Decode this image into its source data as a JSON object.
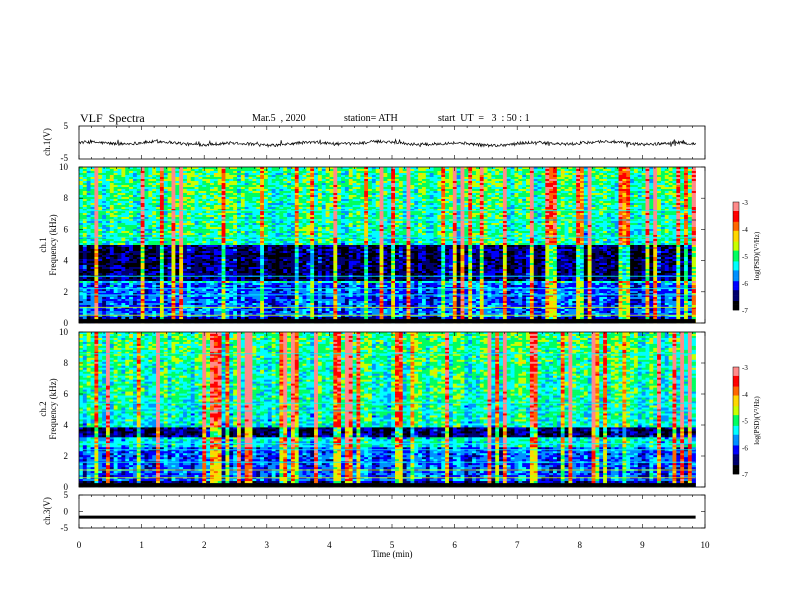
{
  "header": {
    "title": "VLF  Spectra",
    "date": "Mar.5  , 2020",
    "station": "station= ATH",
    "start_ut": "start  UT  =   3  : 50 : 1"
  },
  "chart_data": [
    {
      "type": "line",
      "panel": "ch1-waveform",
      "ylabel": "ch.1(V)",
      "ylim": [
        -5,
        5
      ],
      "yticks": [
        "5",
        "-5"
      ],
      "x_end_min": 9.85,
      "description_values": {
        "baseline": -0.3,
        "amplitude_range": [
          -2.3,
          0.9
        ]
      }
    },
    {
      "type": "heatmap",
      "panel": "ch1-spectrogram",
      "ylabel": "ch.1\nFrequency  (kHz)",
      "ylabel_lines": [
        "ch.1",
        "Frequency  (kHz)"
      ],
      "ylim": [
        0,
        10
      ],
      "yticks": [
        "0",
        "2",
        "4",
        "6",
        "8",
        "10"
      ],
      "x_end_min": 9.85,
      "colorbar": {
        "label": "log(PSD)(V²/Hz)",
        "range": [
          -7,
          -3
        ],
        "ticks": [
          "-3",
          "-4",
          "-5",
          "-6",
          "-7"
        ]
      },
      "bands_khz": {
        "dark_low_power": [
          2.7,
          5.0
        ],
        "bright_lines": [
          0.5,
          1.0,
          1.8,
          2.2,
          3.0,
          5.5,
          6.6,
          7.2
        ]
      }
    },
    {
      "type": "heatmap",
      "panel": "ch2-spectrogram",
      "ylabel_lines": [
        "ch.2",
        "Frequency  (kHz)"
      ],
      "ylim": [
        0,
        10
      ],
      "yticks": [
        "0",
        "2",
        "4",
        "6",
        "8",
        "10"
      ],
      "x_end_min": 9.85,
      "colorbar": {
        "label": "log(PSD)(V²/Hz)",
        "range": [
          -7,
          -3
        ],
        "ticks": [
          "-3",
          "-4",
          "-5",
          "-6",
          "-7"
        ]
      },
      "bands_khz": {
        "dark_low_power": [
          3.2,
          3.8
        ],
        "bright_lines": [
          0.6,
          1.1,
          1.6,
          2.4,
          2.8,
          4.9,
          5.4,
          8.6
        ]
      }
    },
    {
      "type": "line",
      "panel": "ch3-waveform",
      "ylabel": "ch.3(V)",
      "ylim": [
        -5,
        5
      ],
      "yticks": [
        "5",
        "0",
        "-5"
      ],
      "x_end_min": 9.85,
      "description_values": {
        "constant_level": -1.7
      }
    }
  ],
  "xaxis": {
    "xlabel": "Time  (min)",
    "xlim": [
      0,
      10
    ],
    "ticks": [
      "0",
      "1",
      "2",
      "3",
      "4",
      "5",
      "6",
      "7",
      "8",
      "9",
      "10"
    ]
  },
  "colors": {
    "map": [
      "#000000",
      "#00006e",
      "#0000ff",
      "#0090ff",
      "#00ffff",
      "#00ff60",
      "#c8ff00",
      "#ffd700",
      "#ff6600",
      "#ff0000",
      "#ff8a8a",
      "#ffffff"
    ]
  }
}
